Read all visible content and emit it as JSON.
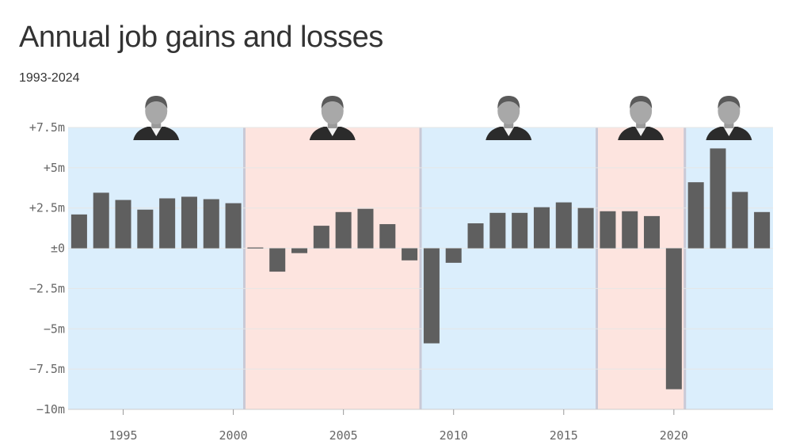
{
  "title": "Annual job gains and losses",
  "subtitle": "1993-2024",
  "colors": {
    "bar": "#5f5f5f",
    "democrat_band": "#dbeefc",
    "republican_band": "#fde4df",
    "grid": "#e6e6e6",
    "axis": "#cccccc"
  },
  "chart_data": {
    "type": "bar",
    "title": "Annual job gains and losses",
    "subtitle": "1993-2024",
    "xlabel": "",
    "ylabel": "",
    "ylim": [
      -10,
      7.5
    ],
    "xlim": [
      1992.5,
      2024.5
    ],
    "grid": true,
    "unit": "millions of jobs",
    "y_ticks": [
      {
        "value": 7.5,
        "label": "+7.5m"
      },
      {
        "value": 5,
        "label": "+5m"
      },
      {
        "value": 2.5,
        "label": "+2.5m"
      },
      {
        "value": 0,
        "label": "±0"
      },
      {
        "value": -2.5,
        "label": "−2.5m"
      },
      {
        "value": -5,
        "label": "−5m"
      },
      {
        "value": -7.5,
        "label": "−7.5m"
      },
      {
        "value": -10,
        "label": "−10m"
      }
    ],
    "x_ticks": [
      {
        "value": 1995,
        "label": "1995"
      },
      {
        "value": 2000,
        "label": "2000"
      },
      {
        "value": 2005,
        "label": "2005"
      },
      {
        "value": 2010,
        "label": "2010"
      },
      {
        "value": 2015,
        "label": "2015"
      },
      {
        "value": 2020,
        "label": "2020"
      }
    ],
    "x": [
      1993,
      1994,
      1995,
      1996,
      1997,
      1998,
      1999,
      2000,
      2001,
      2002,
      2003,
      2004,
      2005,
      2006,
      2007,
      2008,
      2009,
      2010,
      2011,
      2012,
      2013,
      2014,
      2015,
      2016,
      2017,
      2018,
      2019,
      2020,
      2021,
      2022,
      2023,
      2024
    ],
    "values": [
      2.1,
      3.45,
      3.0,
      2.4,
      3.1,
      3.2,
      3.05,
      2.8,
      0.05,
      -1.45,
      -0.3,
      1.4,
      2.25,
      2.45,
      1.5,
      -0.75,
      -5.9,
      -0.9,
      1.55,
      2.2,
      2.2,
      2.55,
      2.85,
      2.5,
      2.3,
      2.3,
      2.0,
      -8.75,
      4.1,
      6.2,
      3.5,
      2.25
    ],
    "presidential_terms": [
      {
        "start": 1993,
        "end": 2000,
        "party": "democrat",
        "icon": "clinton-portrait-icon"
      },
      {
        "start": 2001,
        "end": 2008,
        "party": "republican",
        "icon": "bush-portrait-icon"
      },
      {
        "start": 2009,
        "end": 2016,
        "party": "democrat",
        "icon": "obama-portrait-icon"
      },
      {
        "start": 2017,
        "end": 2020,
        "party": "republican",
        "icon": "trump-portrait-icon"
      },
      {
        "start": 2021,
        "end": 2024,
        "party": "democrat",
        "icon": "biden-portrait-icon"
      }
    ]
  }
}
